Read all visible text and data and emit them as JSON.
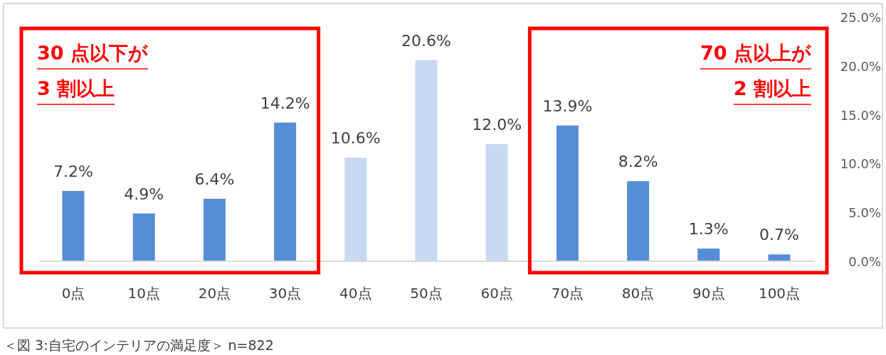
{
  "chart_data": {
    "type": "bar",
    "categories": [
      "0点",
      "10点",
      "20点",
      "30点",
      "40点",
      "50点",
      "60点",
      "70点",
      "80点",
      "90点",
      "100点"
    ],
    "values": [
      7.2,
      4.9,
      6.4,
      14.2,
      10.6,
      20.6,
      12.0,
      13.9,
      8.2,
      1.3,
      0.7
    ],
    "colors": [
      "#558ed5",
      "#558ed5",
      "#558ed5",
      "#558ed5",
      "#c6d9f1",
      "#c6d9f1",
      "#c6d9f1",
      "#558ed5",
      "#558ed5",
      "#558ed5",
      "#558ed5"
    ],
    "value_labels": [
      "7.2%",
      "4.9%",
      "6.4%",
      "14.2%",
      "10.6%",
      "20.6%",
      "12.0%",
      "13.9%",
      "8.2%",
      "1.3%",
      "0.7%"
    ],
    "ylim": [
      0,
      25
    ],
    "yticks": [
      {
        "value": 0,
        "label": "0.0%"
      },
      {
        "value": 5,
        "label": "5.0%"
      },
      {
        "value": 10,
        "label": "10.0%"
      },
      {
        "value": 15,
        "label": "15.0%"
      },
      {
        "value": 20,
        "label": "20.0%"
      },
      {
        "value": 25,
        "label": "25.0%"
      }
    ],
    "annotations": [
      "30 点以下が",
      "3 割以上",
      "70 点以上が",
      "2 割以上",
      "＜図 3:自宅のインテリアの満足度＞ n=822"
    ]
  }
}
